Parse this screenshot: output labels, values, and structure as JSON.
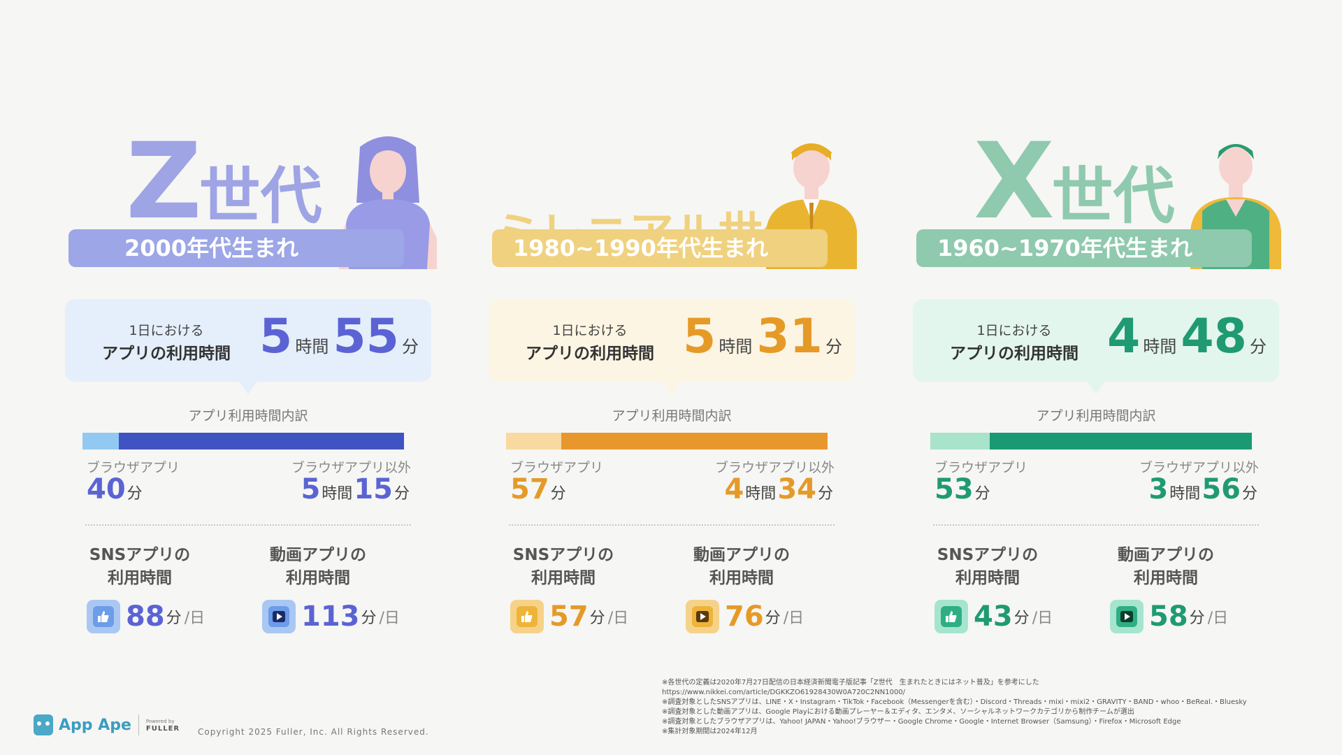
{
  "generations": [
    {
      "id": "z",
      "big_letter": "Z",
      "gen_label": "世代",
      "birth": "2000年代生まれ",
      "usage_label_1": "1日における",
      "usage_label_2": "アプリの利用時間",
      "usage_hours": "5",
      "usage_minutes": "55",
      "breakdown_title": "アプリ利用時間内訳",
      "browser_label": "ブラウザアプリ",
      "browser_minutes": "40",
      "non_browser_label": "ブラウザアプリ以外",
      "non_browser_hours": "5",
      "non_browser_minutes": "15",
      "browser_fraction": 0.113,
      "sns_title_1": "SNSアプリの",
      "sns_title_2": "利用時間",
      "sns_minutes": "88",
      "video_title_1": "動画アプリの",
      "video_title_2": "利用時間",
      "video_minutes": "113",
      "colors": {
        "main": "#5b63d4",
        "light": "#9aa6e6",
        "box": "#e5effb",
        "bar_light": "#92c9f2",
        "bar_dark": "#3f54c2",
        "icon_bg": "#a9c7f3",
        "icon_inner": "#6d9ce8"
      }
    },
    {
      "id": "m",
      "big_letter": "",
      "gen_label": "ミレニアル世代",
      "birth": "1980~1990年代生まれ",
      "usage_label_1": "1日における",
      "usage_label_2": "アプリの利用時間",
      "usage_hours": "5",
      "usage_minutes": "31",
      "breakdown_title": "アプリ利用時間内訳",
      "browser_label": "ブラウザアプリ",
      "browser_minutes": "57",
      "non_browser_label": "ブラウザアプリ以外",
      "non_browser_hours": "4",
      "non_browser_minutes": "34",
      "browser_fraction": 0.172,
      "sns_title_1": "SNSアプリの",
      "sns_title_2": "利用時間",
      "sns_minutes": "57",
      "video_title_1": "動画アプリの",
      "video_title_2": "利用時間",
      "video_minutes": "76",
      "colors": {
        "main": "#e59a28",
        "light": "#efd17f",
        "box": "#fdf5e3",
        "bar_light": "#f8d9a0",
        "bar_dark": "#e8972d",
        "icon_bg": "#f6d289",
        "icon_inner": "#eeb43a"
      }
    },
    {
      "id": "x",
      "big_letter": "X",
      "gen_label": "世代",
      "birth": "1960~1970年代生まれ",
      "usage_label_1": "1日における",
      "usage_label_2": "アプリの利用時間",
      "usage_hours": "4",
      "usage_minutes": "48",
      "breakdown_title": "アプリ利用時間内訳",
      "browser_label": "ブラウザアプリ",
      "browser_minutes": "53",
      "non_browser_label": "ブラウザアプリ以外",
      "non_browser_hours": "3",
      "non_browser_minutes": "56",
      "browser_fraction": 0.184,
      "sns_title_1": "SNSアプリの",
      "sns_title_2": "利用時間",
      "sns_minutes": "43",
      "video_title_1": "動画アプリの",
      "video_title_2": "利用時間",
      "video_minutes": "58",
      "colors": {
        "main": "#1f9a72",
        "light": "#8fc9ae",
        "box": "#e3f6ee",
        "bar_light": "#a8e3cc",
        "bar_dark": "#1a9a72",
        "icon_bg": "#a5e5cf",
        "icon_inner": "#2fae84"
      }
    }
  ],
  "units": {
    "hour": "時間",
    "minute": "分",
    "per_day": "/日"
  },
  "icons": {
    "sns": "thumbs-up-icon",
    "video": "play-icon"
  },
  "notes": [
    "※各世代の定義は2020年7月27日配信の日本経済新聞電子版記事「Z世代　生まれたときにはネット普及」を参考にした",
    "https://www.nikkei.com/article/DGKKZO61928430W0A720C2NN1000/",
    "※調査対象としたSNSアプリは、LINE・X・Instagram・TikTok・Facebook（Messengerを含む）・Discord・Threads・mixi・mixi2・GRAVITY・BAND・whoo・BeReal.・Bluesky",
    "※調査対象とした動画アプリは、Google Playにおける動画プレーヤー＆エディタ、エンタメ、ソーシャルネットワークカテゴリから制作チームが選出",
    "※調査対象としたブラウザアプリは、Yahoo! JAPAN・Yahoo!ブラウザー・Google Chrome・Google・Internet Browser（Samsung）・Firefox・Microsoft Edge",
    "※集計対象期間は2024年12月"
  ],
  "footer": {
    "brand": "App Ape",
    "powered_by": "Powered by",
    "fuller": "FULLER",
    "copyright": "Copyright 2025 Fuller, Inc. All Rights Reserved."
  }
}
